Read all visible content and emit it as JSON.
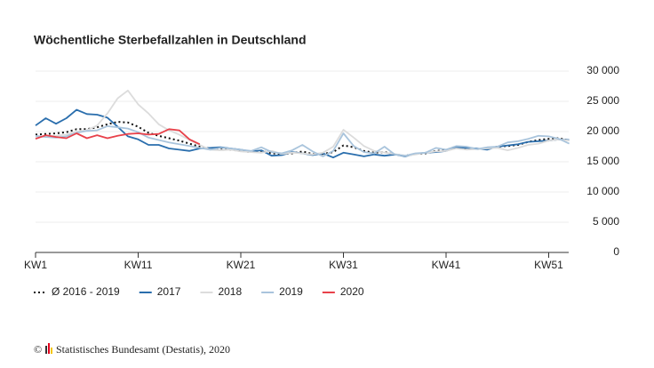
{
  "chart_data": {
    "type": "line",
    "title": "Wöchentliche Sterbefallzahlen in Deutschland",
    "categories": [
      "KW1",
      null,
      null,
      null,
      null,
      null,
      null,
      null,
      null,
      null,
      "KW11",
      null,
      null,
      null,
      null,
      null,
      null,
      null,
      null,
      null,
      "KW21",
      null,
      null,
      null,
      null,
      null,
      null,
      null,
      null,
      null,
      "KW31",
      null,
      null,
      null,
      null,
      null,
      null,
      null,
      null,
      null,
      "KW41",
      null,
      null,
      null,
      null,
      null,
      null,
      null,
      null,
      null,
      "KW51",
      null,
      null
    ],
    "ylim": [
      0,
      30000
    ],
    "yticks": [
      0,
      {
        "value": 5000,
        "label": "5 000"
      },
      {
        "value": 10000,
        "label": "10 000"
      },
      {
        "value": 15000,
        "label": "15 000"
      },
      {
        "value": 20000,
        "label": "20 000"
      },
      {
        "value": 25000,
        "label": "25 000"
      },
      {
        "value": 30000,
        "label": "30 000"
      }
    ],
    "grid": true,
    "series": [
      {
        "name": "Ø 2016 - 2019",
        "color": "#111111",
        "dashed": true,
        "values": [
          19500,
          19600,
          19700,
          19900,
          20400,
          20400,
          20700,
          21200,
          21600,
          21500,
          20800,
          19800,
          19300,
          18900,
          18500,
          18000,
          17500,
          17200,
          17200,
          17000,
          16800,
          16600,
          16800,
          16400,
          16300,
          16400,
          16700,
          16300,
          16300,
          16600,
          17700,
          17400,
          16800,
          16500,
          16600,
          16200,
          16000,
          16300,
          16400,
          16800,
          16900,
          17300,
          17200,
          17100,
          17200,
          17500,
          17600,
          17800,
          18300,
          18600,
          18800,
          18900,
          18500
        ]
      },
      {
        "name": "2017",
        "color": "#2a6ead",
        "values": [
          21000,
          22200,
          21300,
          22200,
          23600,
          22900,
          22800,
          22300,
          20800,
          19200,
          18700,
          17800,
          17800,
          17200,
          17000,
          16800,
          17200,
          17300,
          17400,
          17200,
          17000,
          16700,
          16900,
          16000,
          16100,
          16600,
          16400,
          16100,
          16400,
          15700,
          16500,
          16200,
          15900,
          16200,
          16000,
          16200,
          15900,
          16300,
          16500,
          16600,
          16800,
          17400,
          17300,
          17200,
          17000,
          17500,
          17700,
          17900,
          18300,
          18400,
          18500,
          18700,
          18600
        ]
      },
      {
        "name": "2018",
        "color": "#dcdcdc",
        "values": [
          19000,
          19200,
          19300,
          19500,
          20000,
          20200,
          21000,
          23000,
          25500,
          26800,
          24500,
          23000,
          21200,
          20200,
          19500,
          18600,
          17800,
          17000,
          16900,
          17000,
          16700,
          16600,
          16500,
          16800,
          16300,
          16500,
          16400,
          16200,
          16500,
          17500,
          20300,
          19000,
          17600,
          16800,
          16500,
          16300,
          16000,
          16200,
          16500,
          16700,
          16800,
          17200,
          17000,
          17100,
          17200,
          17300,
          16900,
          17300,
          17800,
          18000,
          18500,
          18700,
          18500
        ]
      },
      {
        "name": "2019",
        "color": "#a9c4dc",
        "values": [
          19300,
          19100,
          19000,
          19200,
          19800,
          20100,
          20200,
          20900,
          20700,
          20500,
          19900,
          19000,
          18600,
          18200,
          17900,
          17600,
          17300,
          17000,
          17300,
          17200,
          17000,
          16800,
          17400,
          16600,
          16400,
          16900,
          17800,
          16700,
          15900,
          16800,
          19700,
          17600,
          16600,
          16400,
          17500,
          16200,
          16000,
          16400,
          16500,
          17300,
          17000,
          17600,
          17500,
          17100,
          17400,
          17500,
          18200,
          18400,
          18800,
          19300,
          19200,
          18800,
          18000
        ]
      },
      {
        "name": "2020",
        "color": "#e8414a",
        "values": [
          18800,
          19400,
          19100,
          18900,
          19700,
          18900,
          19400,
          18900,
          19300,
          19600,
          19700,
          19500,
          19600,
          20400,
          20200,
          18700,
          17900,
          null,
          null,
          null,
          null,
          null,
          null,
          null,
          null,
          null,
          null,
          null,
          null,
          null,
          null,
          null,
          null,
          null,
          null,
          null,
          null,
          null,
          null,
          null,
          null,
          null,
          null,
          null,
          null,
          null,
          null,
          null,
          null,
          null,
          null,
          null,
          null
        ]
      }
    ],
    "credit": "©",
    "source": "Statistisches Bundesamt (Destatis), 2020"
  }
}
